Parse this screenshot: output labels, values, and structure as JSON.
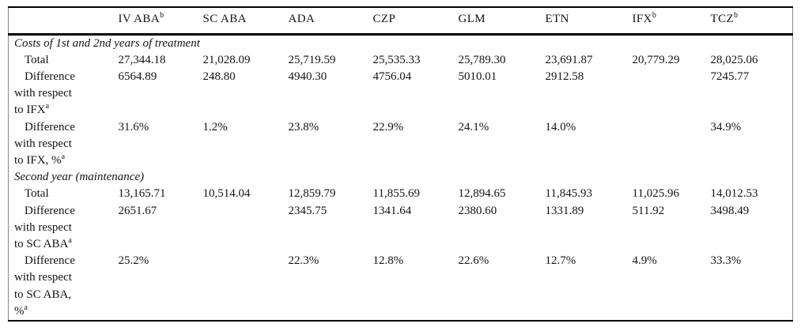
{
  "table": {
    "columns": [
      {
        "text": "",
        "sup": ""
      },
      {
        "text": "IV ABA",
        "sup": "b"
      },
      {
        "text": "SC ABA",
        "sup": ""
      },
      {
        "text": "ADA",
        "sup": ""
      },
      {
        "text": "CZP",
        "sup": ""
      },
      {
        "text": "GLM",
        "sup": ""
      },
      {
        "text": "ETN",
        "sup": ""
      },
      {
        "text": "IFX",
        "sup": "b"
      },
      {
        "text": "TCZ",
        "sup": "b"
      }
    ],
    "rows": [
      {
        "type": "section",
        "label": "Costs of 1st and 2nd years of treatment"
      },
      {
        "type": "data",
        "label": "Total",
        "label_sup": "",
        "cells": [
          "27,344.18",
          "21,028.09",
          "25,719.59",
          "25,535.33",
          "25,789.30",
          "23,691.87",
          "20,779.29",
          "28,025.06"
        ]
      },
      {
        "type": "data",
        "label": "Difference\nwith respect\nto IFX",
        "label_sup": "a",
        "cells": [
          "6564.89",
          "248.80",
          "4940.30",
          "4756.04",
          "5010.01",
          "2912.58",
          "",
          "7245.77"
        ]
      },
      {
        "type": "data",
        "label": "Difference\nwith respect\nto IFX, %",
        "label_sup": "a",
        "cells": [
          "31.6%",
          "1.2%",
          "23.8%",
          "22.9%",
          "24.1%",
          "14.0%",
          "",
          "34.9%"
        ]
      },
      {
        "type": "section",
        "label": "Second year (maintenance)"
      },
      {
        "type": "data",
        "label": "Total",
        "label_sup": "",
        "cells": [
          "13,165.71",
          "10,514.04",
          "12,859.79",
          "11,855.69",
          "12,894.65",
          "11,845.93",
          "11,025.96",
          "14,012.53"
        ]
      },
      {
        "type": "data",
        "label": "Difference\nwith respect\nto SC ABA",
        "label_sup": "a",
        "cells": [
          "2651.67",
          "",
          "2345.75",
          "1341.64",
          "2380.60",
          "1331.89",
          "511.92",
          "3498.49"
        ]
      },
      {
        "type": "data",
        "label": "Difference\nwith respect\nto SC ABA,\n%",
        "label_sup": "a",
        "cells": [
          "25.2%",
          "",
          "22.3%",
          "12.8%",
          "22.6%",
          "12.7%",
          "4.9%",
          "33.3%"
        ]
      }
    ]
  }
}
